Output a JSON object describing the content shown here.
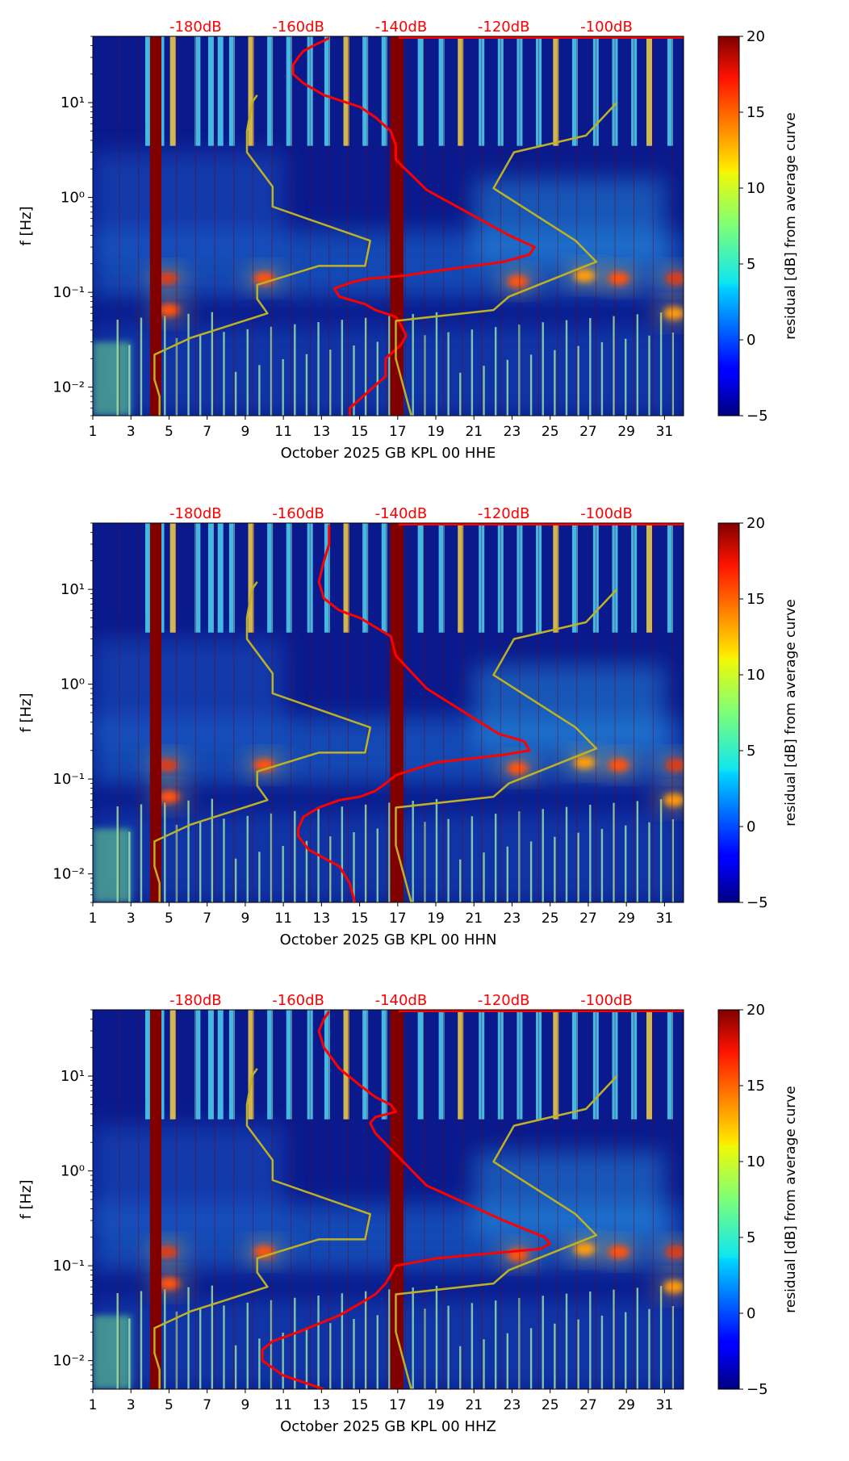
{
  "chart_data": [
    {
      "type": "heatmap",
      "subtype": "spectrogram-residual",
      "xlabel": "October 2025 GB KPL 00 HHE",
      "ylabel": "f [Hz]",
      "x_ticks": [
        "1",
        "3",
        "5",
        "7",
        "9",
        "11",
        "13",
        "15",
        "17",
        "19",
        "21",
        "23",
        "25",
        "27",
        "29",
        "31"
      ],
      "xlim": [
        1,
        32
      ],
      "y_scale": "log",
      "ylim": [
        0.005,
        50
      ],
      "y_tick_labels": [
        "10⁻²",
        "10⁻¹",
        "10⁰",
        "10¹"
      ],
      "top_axis_labels": [
        "-180dB",
        "-160dB",
        "-140dB",
        "-120dB",
        "-100dB"
      ],
      "top_axis_color": "#ff0000",
      "colorbar": {
        "label": "residual [dB] from average curve",
        "min": -5,
        "max": 20,
        "ticks": [
          "−5",
          "0",
          "5",
          "10",
          "15",
          "20"
        ],
        "colormap": "jet"
      },
      "background_color": "#0a1a8c",
      "gap_band_days": [
        [
          4.0,
          4.6
        ],
        [
          16.6,
          17.3
        ]
      ],
      "gap_color": "#800000",
      "high_freq_streak_days": [
        3.9,
        4.6,
        5.2,
        6.5,
        7.2,
        7.7,
        8.3,
        9.3,
        10.3,
        11.3,
        12.4,
        13.3,
        14.3,
        15.3,
        16.3,
        18.2,
        19.3,
        20.3,
        21.4,
        22.4,
        23.4,
        24.4,
        25.3,
        26.3,
        27.4,
        28.4,
        29.4,
        30.2,
        31.3
      ],
      "hotspots": [
        {
          "day": 4.9,
          "freq": 0.14,
          "intensity": 20
        },
        {
          "day": 5.0,
          "freq": 0.065,
          "intensity": 18
        },
        {
          "day": 10.0,
          "freq": 0.14,
          "intensity": 18
        },
        {
          "day": 23.3,
          "freq": 0.13,
          "intensity": 18
        },
        {
          "day": 26.8,
          "freq": 0.15,
          "intensity": 16
        },
        {
          "day": 28.6,
          "freq": 0.14,
          "intensity": 18
        },
        {
          "day": 31.6,
          "freq": 0.14,
          "intensity": 20
        },
        {
          "day": 31.5,
          "freq": 0.06,
          "intensity": 16
        }
      ],
      "series": [
        {
          "name": "median PSD",
          "color": "#ff0000",
          "x_db": [
            -150,
            -150,
            -143,
            -143,
            -140,
            -139,
            -140,
            -141,
            -145,
            -147,
            -152,
            -153,
            -149,
            -146,
            -139,
            -136,
            -129,
            -120,
            -115,
            -114,
            -119,
            -135,
            -141,
            -141,
            -142,
            -145,
            -148,
            -155,
            -159,
            -161,
            -161,
            -160,
            -159,
            -157,
            -155,
            -154
          ],
          "freq": [
            0.005,
            0.006,
            0.013,
            0.02,
            0.028,
            0.035,
            0.045,
            0.055,
            0.065,
            0.075,
            0.09,
            0.11,
            0.13,
            0.14,
            0.15,
            0.16,
            0.18,
            0.21,
            0.25,
            0.3,
            0.4,
            1.2,
            2.5,
            3.5,
            5,
            7,
            9,
            12,
            16,
            20,
            25,
            30,
            35,
            40,
            45,
            48
          ]
        },
        {
          "name": "5th percentile",
          "color": "#bdb125",
          "x_db": [
            -187,
            -187,
            -188,
            -188,
            -181,
            -166,
            -168,
            -168,
            -156,
            -147,
            -146,
            -165,
            -165,
            -170,
            -170,
            -169,
            -168
          ],
          "freq": [
            0.005,
            0.008,
            0.012,
            0.022,
            0.033,
            0.06,
            0.085,
            0.12,
            0.19,
            0.19,
            0.35,
            0.8,
            1.3,
            3,
            5,
            10,
            12
          ]
        },
        {
          "name": "95th percentile",
          "color": "#bdb125",
          "x_db": [
            -138,
            -141,
            -141,
            -122,
            -119,
            -102,
            -106,
            -122,
            -118,
            -104,
            -98
          ],
          "freq": [
            0.005,
            0.02,
            0.05,
            0.065,
            0.09,
            0.21,
            0.35,
            1.25,
            3,
            4.5,
            10
          ]
        }
      ]
    },
    {
      "type": "heatmap",
      "subtype": "spectrogram-residual",
      "xlabel": "October 2025 GB KPL 00 HHN",
      "ylabel": "f [Hz]",
      "x_ticks": [
        "1",
        "3",
        "5",
        "7",
        "9",
        "11",
        "13",
        "15",
        "17",
        "19",
        "21",
        "23",
        "25",
        "27",
        "29",
        "31"
      ],
      "xlim": [
        1,
        32
      ],
      "y_scale": "log",
      "ylim": [
        0.005,
        50
      ],
      "y_tick_labels": [
        "10⁻²",
        "10⁻¹",
        "10⁰",
        "10¹"
      ],
      "top_axis_labels": [
        "-180dB",
        "-160dB",
        "-140dB",
        "-120dB",
        "-100dB"
      ],
      "top_axis_color": "#ff0000",
      "colorbar": {
        "label": "residual [dB] from average curve",
        "min": -5,
        "max": 20,
        "ticks": [
          "−5",
          "0",
          "5",
          "10",
          "15",
          "20"
        ],
        "colormap": "jet"
      },
      "background_color": "#0a1a8c",
      "gap_band_days": [
        [
          4.0,
          4.6
        ],
        [
          16.6,
          17.3
        ]
      ],
      "gap_color": "#800000",
      "high_freq_streak_days": [
        3.9,
        4.6,
        5.2,
        6.5,
        7.2,
        7.7,
        8.3,
        9.3,
        10.3,
        11.3,
        12.4,
        13.3,
        14.3,
        15.3,
        16.3,
        18.2,
        19.3,
        20.3,
        21.4,
        22.4,
        23.4,
        24.4,
        25.3,
        26.3,
        27.4,
        28.4,
        29.4,
        30.2,
        31.3
      ],
      "hotspots": [
        {
          "day": 4.9,
          "freq": 0.14,
          "intensity": 20
        },
        {
          "day": 5.0,
          "freq": 0.065,
          "intensity": 18
        },
        {
          "day": 10.0,
          "freq": 0.14,
          "intensity": 18
        },
        {
          "day": 23.3,
          "freq": 0.13,
          "intensity": 18
        },
        {
          "day": 26.8,
          "freq": 0.15,
          "intensity": 16
        },
        {
          "day": 28.6,
          "freq": 0.14,
          "intensity": 18
        },
        {
          "day": 31.6,
          "freq": 0.14,
          "intensity": 20
        },
        {
          "day": 31.5,
          "freq": 0.06,
          "intensity": 16
        }
      ],
      "series": [
        {
          "name": "median PSD",
          "color": "#ff0000",
          "x_db": [
            -149,
            -150,
            -152,
            -158,
            -160,
            -160,
            -159,
            -156,
            -152,
            -148,
            -145,
            -143,
            -141,
            -133,
            -120,
            -115,
            -116,
            -121,
            -135,
            -141,
            -142,
            -145,
            -148,
            -152,
            -155,
            -156,
            -155,
            -154,
            -154
          ],
          "freq": [
            0.005,
            0.008,
            0.012,
            0.018,
            0.025,
            0.03,
            0.04,
            0.05,
            0.06,
            0.065,
            0.075,
            0.09,
            0.11,
            0.15,
            0.18,
            0.2,
            0.25,
            0.3,
            0.9,
            2,
            3.2,
            4,
            5,
            6,
            8,
            12,
            20,
            30,
            48
          ]
        },
        {
          "name": "5th percentile",
          "color": "#bdb125",
          "x_db": [
            -187,
            -187,
            -188,
            -188,
            -181,
            -166,
            -168,
            -168,
            -156,
            -147,
            -146,
            -165,
            -165,
            -170,
            -170,
            -169,
            -168
          ],
          "freq": [
            0.005,
            0.008,
            0.012,
            0.022,
            0.033,
            0.06,
            0.085,
            0.12,
            0.19,
            0.19,
            0.35,
            0.8,
            1.3,
            3,
            5,
            10,
            12
          ]
        },
        {
          "name": "95th percentile",
          "color": "#bdb125",
          "x_db": [
            -138,
            -141,
            -141,
            -122,
            -119,
            -102,
            -106,
            -122,
            -118,
            -104,
            -98
          ],
          "freq": [
            0.005,
            0.02,
            0.05,
            0.065,
            0.09,
            0.21,
            0.35,
            1.25,
            3,
            4.5,
            10
          ]
        }
      ]
    },
    {
      "type": "heatmap",
      "subtype": "spectrogram-residual",
      "xlabel": "October 2025 GB KPL 00 HHZ",
      "ylabel": "f [Hz]",
      "x_ticks": [
        "1",
        "3",
        "5",
        "7",
        "9",
        "11",
        "13",
        "15",
        "17",
        "19",
        "21",
        "23",
        "25",
        "27",
        "29",
        "31"
      ],
      "xlim": [
        1,
        32
      ],
      "y_scale": "log",
      "ylim": [
        0.005,
        50
      ],
      "y_tick_labels": [
        "10⁻²",
        "10⁻¹",
        "10⁰",
        "10¹"
      ],
      "top_axis_labels": [
        "-180dB",
        "-160dB",
        "-140dB",
        "-120dB",
        "-100dB"
      ],
      "top_axis_color": "#ff0000",
      "colorbar": {
        "label": "residual [dB] from average curve",
        "min": -5,
        "max": 20,
        "ticks": [
          "−5",
          "0",
          "5",
          "10",
          "15",
          "20"
        ],
        "colormap": "jet"
      },
      "background_color": "#0a1a8c",
      "gap_band_days": [
        [
          4.0,
          4.6
        ],
        [
          16.6,
          17.3
        ]
      ],
      "gap_color": "#800000",
      "high_freq_streak_days": [
        3.9,
        4.6,
        5.2,
        6.5,
        7.2,
        7.7,
        8.3,
        9.3,
        10.3,
        11.3,
        12.4,
        13.3,
        14.3,
        15.3,
        16.3,
        18.2,
        19.3,
        20.3,
        21.4,
        22.4,
        23.4,
        24.4,
        25.3,
        26.3,
        27.4,
        28.4,
        29.4,
        30.2,
        31.3
      ],
      "hotspots": [
        {
          "day": 4.9,
          "freq": 0.14,
          "intensity": 20
        },
        {
          "day": 5.0,
          "freq": 0.065,
          "intensity": 18
        },
        {
          "day": 10.0,
          "freq": 0.14,
          "intensity": 18
        },
        {
          "day": 23.3,
          "freq": 0.13,
          "intensity": 18
        },
        {
          "day": 26.8,
          "freq": 0.15,
          "intensity": 16
        },
        {
          "day": 28.6,
          "freq": 0.14,
          "intensity": 18
        },
        {
          "day": 31.6,
          "freq": 0.14,
          "intensity": 20
        },
        {
          "day": 31.5,
          "freq": 0.06,
          "intensity": 16
        }
      ],
      "series": [
        {
          "name": "median PSD",
          "color": "#ff0000",
          "x_db": [
            -155,
            -163,
            -167,
            -167,
            -165,
            -160,
            -152,
            -148,
            -145,
            -143,
            -141,
            -133,
            -113,
            -111,
            -112,
            -120,
            -135,
            -141,
            -145,
            -146,
            -145,
            -141,
            -142,
            -145,
            -148,
            -152,
            -155,
            -156,
            -155,
            -154
          ],
          "freq": [
            0.005,
            0.007,
            0.01,
            0.013,
            0.016,
            0.02,
            0.03,
            0.04,
            0.05,
            0.065,
            0.1,
            0.12,
            0.15,
            0.17,
            0.2,
            0.3,
            0.7,
            1.5,
            2.5,
            3.2,
            3.7,
            4.2,
            5,
            6,
            8,
            12,
            20,
            30,
            40,
            48
          ]
        },
        {
          "name": "5th percentile",
          "color": "#bdb125",
          "x_db": [
            -187,
            -187,
            -188,
            -188,
            -181,
            -166,
            -168,
            -168,
            -156,
            -147,
            -146,
            -165,
            -165,
            -170,
            -170,
            -169,
            -168
          ],
          "freq": [
            0.005,
            0.008,
            0.012,
            0.022,
            0.033,
            0.06,
            0.085,
            0.12,
            0.19,
            0.19,
            0.35,
            0.8,
            1.3,
            3,
            5,
            10,
            12
          ]
        },
        {
          "name": "95th percentile",
          "color": "#bdb125",
          "x_db": [
            -138,
            -141,
            -141,
            -122,
            -119,
            -102,
            -106,
            -122,
            -118,
            -104,
            -98
          ],
          "freq": [
            0.005,
            0.02,
            0.05,
            0.065,
            0.09,
            0.21,
            0.35,
            1.25,
            3,
            4.5,
            10
          ]
        }
      ]
    }
  ]
}
